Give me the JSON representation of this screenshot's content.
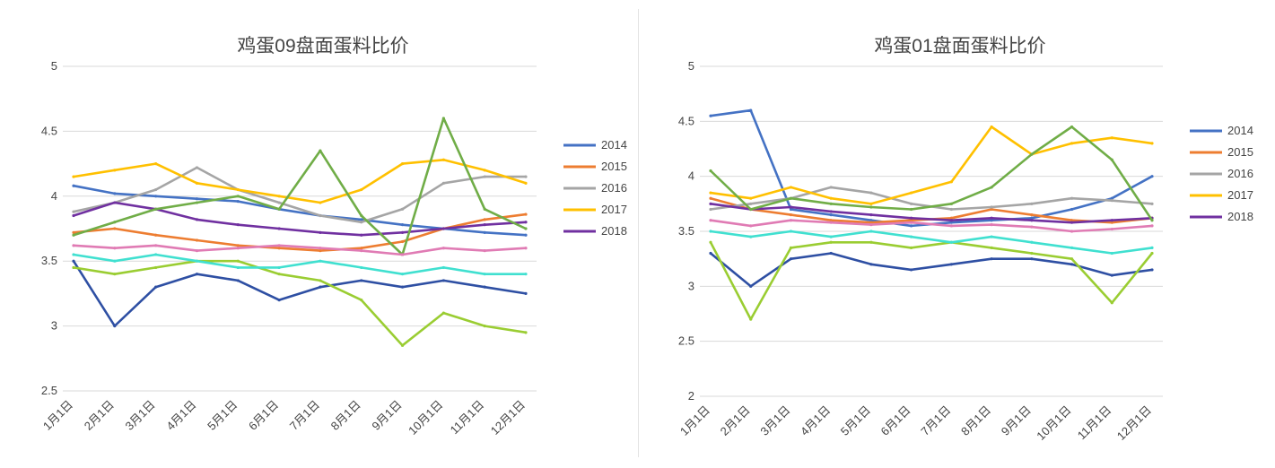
{
  "chart_data": [
    {
      "type": "line",
      "title": "鸡蛋09盘面蛋料比价",
      "xlabel": "",
      "ylabel": "",
      "ylim": [
        2.5,
        5
      ],
      "yticks": [
        "2.5",
        "3",
        "3.5",
        "4",
        "4.5",
        "5"
      ],
      "xticks": [
        "1月1日",
        "2月1日",
        "3月1日",
        "4月1日",
        "5月1日",
        "6月1日",
        "7月1日",
        "8月1日",
        "9月1日",
        "10月1日",
        "11月1日",
        "12月1日"
      ],
      "legend_position": "right",
      "grid": true,
      "series": [
        {
          "name": "2014",
          "color": "#4472c4",
          "values": [
            4.08,
            4.02,
            4.0,
            3.98,
            3.96,
            3.9,
            3.85,
            3.82,
            3.78,
            3.75,
            3.72,
            3.7
          ]
        },
        {
          "name": "2015",
          "color": "#ed7d31",
          "values": [
            3.72,
            3.75,
            3.7,
            3.66,
            3.62,
            3.6,
            3.58,
            3.6,
            3.65,
            3.75,
            3.82,
            3.86
          ]
        },
        {
          "name": "2016",
          "color": "#a5a5a5",
          "values": [
            3.88,
            3.95,
            4.05,
            4.22,
            4.05,
            3.95,
            3.85,
            3.8,
            3.9,
            4.1,
            4.15,
            4.15
          ]
        },
        {
          "name": "2017",
          "color": "#ffc000",
          "values": [
            4.15,
            4.2,
            4.25,
            4.1,
            4.05,
            4.0,
            3.95,
            4.05,
            4.25,
            4.28,
            4.2,
            4.1
          ]
        },
        {
          "name": "2018",
          "color": "#7030a0",
          "values": [
            3.85,
            3.95,
            3.9,
            3.82,
            3.78,
            3.75,
            3.72,
            3.7,
            3.72,
            3.75,
            3.78,
            3.8
          ]
        },
        {
          "name": "",
          "color": "#70ad47",
          "values": [
            3.7,
            3.8,
            3.9,
            3.95,
            4.0,
            3.9,
            4.35,
            3.85,
            3.55,
            4.6,
            3.9,
            3.75
          ]
        },
        {
          "name": "",
          "color": "#2e4fa3",
          "values": [
            3.5,
            3.0,
            3.3,
            3.4,
            3.35,
            3.2,
            3.3,
            3.35,
            3.3,
            3.35,
            3.3,
            3.25
          ]
        },
        {
          "name": "",
          "color": "#9acd32",
          "values": [
            3.45,
            3.4,
            3.45,
            3.5,
            3.5,
            3.4,
            3.35,
            3.2,
            2.85,
            3.1,
            3.0,
            2.95
          ]
        },
        {
          "name": "",
          "color": "#40e0d0",
          "values": [
            3.55,
            3.5,
            3.55,
            3.5,
            3.45,
            3.45,
            3.5,
            3.45,
            3.4,
            3.45,
            3.4,
            3.4
          ]
        },
        {
          "name": "",
          "color": "#e07bb4",
          "values": [
            3.62,
            3.6,
            3.62,
            3.58,
            3.6,
            3.62,
            3.6,
            3.58,
            3.55,
            3.6,
            3.58,
            3.6
          ]
        }
      ]
    },
    {
      "type": "line",
      "title": "鸡蛋01盘面蛋料比价",
      "xlabel": "",
      "ylabel": "",
      "ylim": [
        2,
        5
      ],
      "yticks": [
        "2",
        "2.5",
        "3",
        "3.5",
        "4",
        "4.5",
        "5"
      ],
      "xticks": [
        "1月1日",
        "2月1日",
        "3月1日",
        "4月1日",
        "5月1日",
        "6月1日",
        "7月1日",
        "8月1日",
        "9月1日",
        "10月1日",
        "11月1日",
        "12月1日"
      ],
      "legend_position": "right",
      "grid": true,
      "series": [
        {
          "name": "2014",
          "color": "#4472c4",
          "values": [
            4.55,
            4.6,
            3.7,
            3.65,
            3.6,
            3.55,
            3.58,
            3.6,
            3.62,
            3.7,
            3.8,
            4.0
          ]
        },
        {
          "name": "2015",
          "color": "#ed7d31",
          "values": [
            3.8,
            3.7,
            3.65,
            3.6,
            3.58,
            3.6,
            3.62,
            3.7,
            3.65,
            3.6,
            3.58,
            3.62
          ]
        },
        {
          "name": "2016",
          "color": "#a5a5a5",
          "values": [
            3.7,
            3.75,
            3.8,
            3.9,
            3.85,
            3.75,
            3.7,
            3.72,
            3.75,
            3.8,
            3.78,
            3.75
          ]
        },
        {
          "name": "2017",
          "color": "#ffc000",
          "values": [
            3.85,
            3.8,
            3.9,
            3.8,
            3.75,
            3.85,
            3.95,
            4.45,
            4.2,
            4.3,
            4.35,
            4.3
          ]
        },
        {
          "name": "2018",
          "color": "#7030a0",
          "values": [
            3.75,
            3.7,
            3.72,
            3.68,
            3.65,
            3.62,
            3.6,
            3.62,
            3.6,
            3.58,
            3.6,
            3.62
          ]
        },
        {
          "name": "",
          "color": "#70ad47",
          "values": [
            4.05,
            3.7,
            3.8,
            3.75,
            3.72,
            3.7,
            3.75,
            3.9,
            4.2,
            4.45,
            4.15,
            3.6
          ]
        },
        {
          "name": "",
          "color": "#2e4fa3",
          "values": [
            3.3,
            3.0,
            3.25,
            3.3,
            3.2,
            3.15,
            3.2,
            3.25,
            3.25,
            3.2,
            3.1,
            3.15
          ]
        },
        {
          "name": "",
          "color": "#9acd32",
          "values": [
            3.4,
            2.7,
            3.35,
            3.4,
            3.4,
            3.35,
            3.4,
            3.35,
            3.3,
            3.25,
            2.85,
            3.3
          ]
        },
        {
          "name": "",
          "color": "#40e0d0",
          "values": [
            3.5,
            3.45,
            3.5,
            3.45,
            3.5,
            3.45,
            3.4,
            3.45,
            3.4,
            3.35,
            3.3,
            3.35
          ]
        },
        {
          "name": "",
          "color": "#e07bb4",
          "values": [
            3.6,
            3.55,
            3.6,
            3.58,
            3.56,
            3.58,
            3.55,
            3.56,
            3.54,
            3.5,
            3.52,
            3.55
          ]
        }
      ]
    }
  ]
}
